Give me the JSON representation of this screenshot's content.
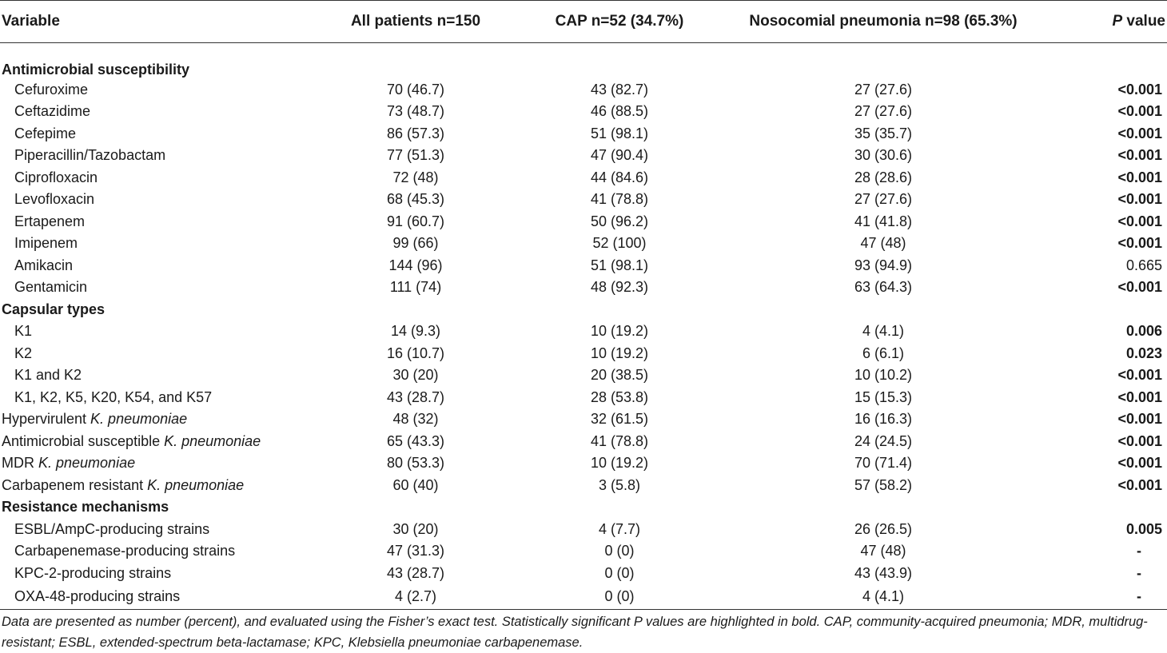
{
  "table": {
    "headers": {
      "variable": "Variable",
      "all": "All patients n=150",
      "cap": "CAP n=52 (34.7%)",
      "noso": "Nosocomial pneumonia n=98 (65.3%)",
      "p_italic": "P",
      "p_rest": " value"
    },
    "sections": [
      {
        "title": "Antimicrobial susceptibility",
        "rows": [
          {
            "label": "Cefuroxime",
            "all": "70 (46.7)",
            "cap": "43 (82.7)",
            "noso": "27 (27.6)",
            "p": "<0.001"
          },
          {
            "label": "Ceftazidime",
            "all": "73 (48.7)",
            "cap": "46 (88.5)",
            "noso": "27 (27.6)",
            "p": "<0.001"
          },
          {
            "label": "Cefepime",
            "all": "86 (57.3)",
            "cap": "51 (98.1)",
            "noso": "35 (35.7)",
            "p": "<0.001"
          },
          {
            "label": "Piperacillin/Tazobactam",
            "all": "77 (51.3)",
            "cap": "47 (90.4)",
            "noso": "30 (30.6)",
            "p": "<0.001"
          },
          {
            "label": "Ciprofloxacin",
            "all": "72 (48)",
            "cap": "44 (84.6)",
            "noso": "28 (28.6)",
            "p": "<0.001"
          },
          {
            "label": "Levofloxacin",
            "all": "68 (45.3)",
            "cap": "41 (78.8)",
            "noso": "27 (27.6)",
            "p": "<0.001"
          },
          {
            "label": "Ertapenem",
            "all": "91 (60.7)",
            "cap": "50 (96.2)",
            "noso": "41 (41.8)",
            "p": "<0.001"
          },
          {
            "label": "Imipenem",
            "all": "99 (66)",
            "cap": "52 (100)",
            "noso": "47 (48)",
            "p": "<0.001"
          },
          {
            "label": "Amikacin",
            "all": "144 (96)",
            "cap": "51 (98.1)",
            "noso": "93 (94.9)",
            "p": "0.665"
          },
          {
            "label": "Gentamicin",
            "all": "111 (74)",
            "cap": "48 (92.3)",
            "noso": "63 (64.3)",
            "p": "<0.001"
          }
        ]
      },
      {
        "title": "Capsular types",
        "rows": [
          {
            "label": "K1",
            "all": "14 (9.3)",
            "cap": "10 (19.2)",
            "noso": "4 (4.1)",
            "p": "0.006"
          },
          {
            "label": "K2",
            "all": "16 (10.7)",
            "cap": "10 (19.2)",
            "noso": "6 (6.1)",
            "p": "0.023"
          },
          {
            "label": "K1 and K2",
            "all": "30 (20)",
            "cap": "20 (38.5)",
            "noso": "10 (10.2)",
            "p": "<0.001"
          },
          {
            "label": "K1, K2, K5, K20, K54, and K57",
            "all": "43 (28.7)",
            "cap": "28 (53.8)",
            "noso": "15 (15.3)",
            "p": "<0.001"
          }
        ]
      },
      {
        "title": "",
        "rows": [
          {
            "label": "Hypervirulent ",
            "species": "K. pneumoniae",
            "all": "48 (32)",
            "cap": "32 (61.5)",
            "noso": "16 (16.3)",
            "p": "<0.001"
          },
          {
            "label": "Antimicrobial susceptible ",
            "species": "K. pneumoniae",
            "all": "65 (43.3)",
            "cap": "41 (78.8)",
            "noso": "24 (24.5)",
            "p": "<0.001"
          },
          {
            "label": "MDR ",
            "species": "K. pneumoniae",
            "all": "80 (53.3)",
            "cap": "10 (19.2)",
            "noso": "70 (71.4)",
            "p": "<0.001"
          },
          {
            "label": "Carbapenem resistant ",
            "species": "K. pneumoniae",
            "all": "60 (40)",
            "cap": "3 (5.8)",
            "noso": "57 (58.2)",
            "p": "<0.001"
          }
        ]
      },
      {
        "title": "Resistance mechanisms",
        "rows": [
          {
            "label": "ESBL/AmpC-producing strains",
            "all": "30 (20)",
            "cap": "4 (7.7)",
            "noso": "26 (26.5)",
            "p": "0.005"
          },
          {
            "label": "Carbapenemase-producing strains",
            "all": "47 (31.3)",
            "cap": "0 (0)",
            "noso": "47 (48)",
            "p": "-"
          },
          {
            "label": "KPC-2-producing strains",
            "all": "43 (28.7)",
            "cap": "0 (0)",
            "noso": "43 (43.9)",
            "p": "-"
          },
          {
            "label": "OXA-48-producing strains",
            "all": "4 (2.7)",
            "cap": "0 (0)",
            "noso": "4 (4.1)",
            "p": "-"
          }
        ]
      }
    ]
  },
  "footnote": "Data are presented as number (percent), and evaluated using the Fisher’s exact test. Statistically significant P values are highlighted in bold. CAP, community-acquired pneumonia; MDR, multidrug-resistant; ESBL, extended-spectrum beta-lactamase; KPC, Klebsiella pneumoniae carbapenemase."
}
